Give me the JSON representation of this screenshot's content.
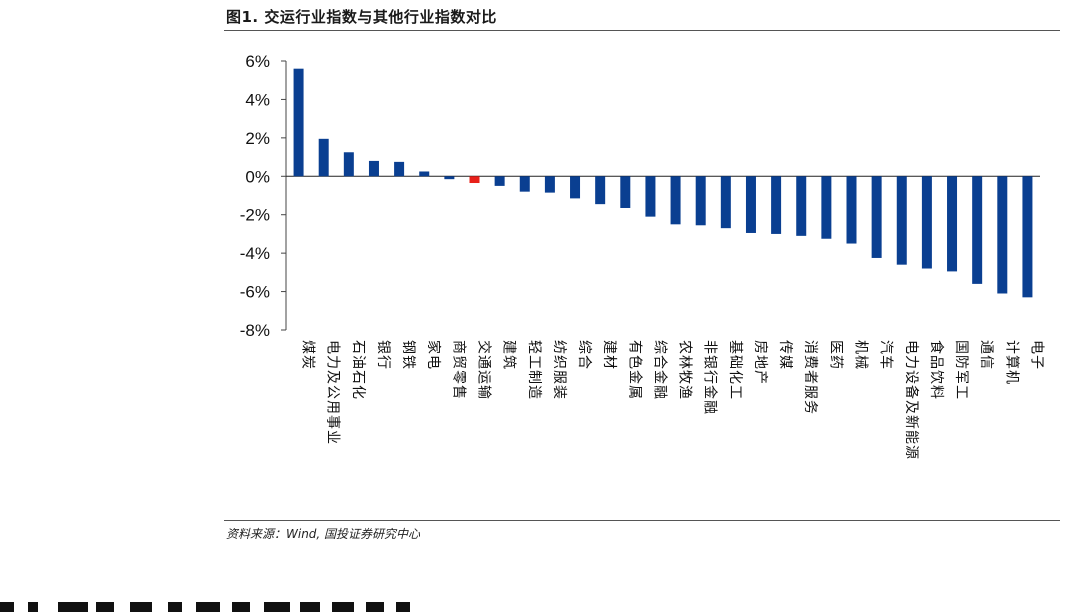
{
  "title": "图1. 交运行业指数与其他行业指数对比",
  "source": "资料来源：Wind, 国投证券研究中心",
  "chart_data": {
    "type": "bar",
    "title": "图1. 交运行业指数与其他行业指数对比",
    "xlabel": "",
    "ylabel": "",
    "ylim": [
      -8,
      6
    ],
    "yticks": [
      "6%",
      "4%",
      "2%",
      "0%",
      "-2%",
      "-4%",
      "-6%",
      "-8%"
    ],
    "yticks_values": [
      6,
      4,
      2,
      0,
      -2,
      -4,
      -6,
      -8
    ],
    "grid": false,
    "bar_color": "#0a3f91",
    "highlight_color": "#e8201a",
    "highlight_category": "交通运输",
    "categories": [
      "煤炭",
      "电力及公用事业",
      "石油石化",
      "银行",
      "钢铁",
      "家电",
      "商贸零售",
      "交通运输",
      "建筑",
      "轻工制造",
      "纺织服装",
      "综合",
      "建材",
      "有色金属",
      "综合金融",
      "农林牧渔",
      "非银行金融",
      "基础化工",
      "房地产",
      "传媒",
      "消费者服务",
      "医药",
      "机械",
      "汽车",
      "电力设备及新能源",
      "食品饮料",
      "国防军工",
      "通信",
      "计算机",
      "电子"
    ],
    "values": [
      5.6,
      1.95,
      1.25,
      0.8,
      0.75,
      0.25,
      -0.15,
      -0.35,
      -0.5,
      -0.8,
      -0.85,
      -1.15,
      -1.45,
      -1.65,
      -2.1,
      -2.5,
      -2.55,
      -2.7,
      -2.95,
      -3.0,
      -3.1,
      -3.25,
      -3.5,
      -4.25,
      -4.6,
      -4.8,
      -4.95,
      -5.6,
      -6.1,
      -6.3
    ]
  }
}
